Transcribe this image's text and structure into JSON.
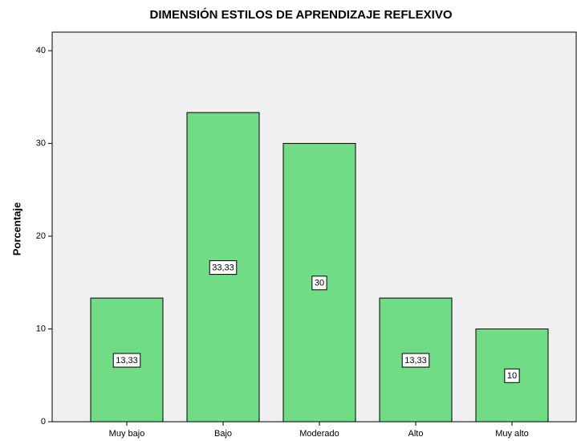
{
  "chart_data": {
    "type": "bar",
    "title": "DIMENSIÓN ESTILOS DE APRENDIZAJE REFLEXIVO",
    "y_label": "Porcentaje",
    "categories": [
      "Muy bajo",
      "Bajo",
      "Moderado",
      "Alto",
      "Muy alto"
    ],
    "values": [
      13.33,
      33.33,
      30,
      13.33,
      10
    ],
    "value_labels": [
      "13,33",
      "33,33",
      "30",
      "13,33",
      "10"
    ],
    "color": "#70dc86",
    "ylim": [
      0,
      42
    ],
    "yticks": [
      0,
      10,
      20,
      30,
      40
    ],
    "grid": false
  }
}
